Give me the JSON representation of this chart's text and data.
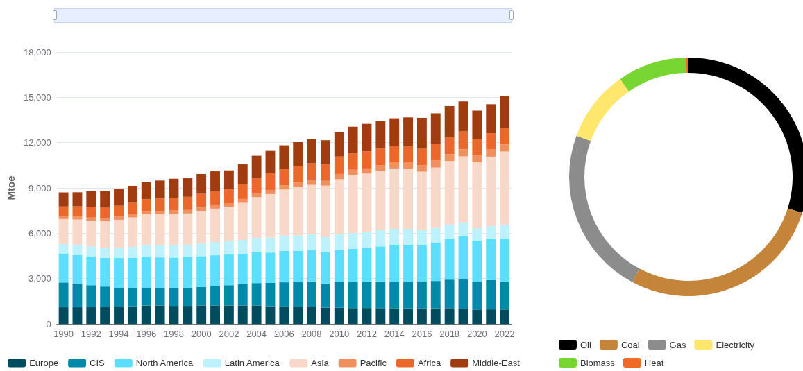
{
  "chart_data": [
    {
      "type": "bar",
      "stacked": true,
      "ylabel": "Mtoe",
      "categories": [
        "1990",
        null,
        "1992",
        null,
        "1994",
        null,
        "1996",
        null,
        "1998",
        null,
        "2000",
        null,
        "2002",
        null,
        "2004",
        null,
        "2006",
        null,
        "2008",
        null,
        "2010",
        null,
        "2012",
        null,
        "2014",
        null,
        "2016",
        null,
        "2018",
        null,
        "2020",
        null,
        "2022"
      ],
      "ylim": [
        0,
        18000
      ],
      "yticks": [
        {
          "value": 0,
          "label": "0"
        },
        {
          "value": 3000,
          "label": "3,000"
        },
        {
          "value": 6000,
          "label": "6,000"
        },
        {
          "value": 9000,
          "label": "9,000"
        },
        {
          "value": 12000,
          "label": "12,000"
        },
        {
          "value": 15000,
          "label": "15,000"
        },
        {
          "value": 18000,
          "label": "18,000"
        }
      ],
      "grid": "y",
      "legend": "bottom",
      "series": [
        {
          "name": "Europe",
          "color": "#004c5f",
          "values": [
            1100,
            1100,
            1100,
            1110,
            1130,
            1170,
            1220,
            1220,
            1190,
            1190,
            1220,
            1220,
            1220,
            1220,
            1220,
            1170,
            1150,
            1130,
            1130,
            1080,
            1080,
            1050,
            1050,
            1040,
            1020,
            1020,
            1020,
            1020,
            1040,
            990,
            950,
            960,
            950
          ]
        },
        {
          "name": "CIS",
          "color": "#0089a8",
          "values": [
            1640,
            1550,
            1460,
            1360,
            1250,
            1190,
            1190,
            1140,
            1160,
            1200,
            1220,
            1260,
            1340,
            1420,
            1480,
            1540,
            1600,
            1630,
            1680,
            1590,
            1710,
            1740,
            1760,
            1770,
            1740,
            1740,
            1770,
            1820,
            1890,
            1970,
            1850,
            1940,
            1860
          ]
        },
        {
          "name": "North America",
          "color": "#5cdeff",
          "values": [
            1920,
            1920,
            1920,
            1900,
            1980,
            2010,
            2030,
            2040,
            2040,
            2030,
            2040,
            2060,
            2030,
            2010,
            2030,
            2010,
            2080,
            2080,
            2090,
            2080,
            2110,
            2180,
            2240,
            2320,
            2490,
            2490,
            2400,
            2530,
            2720,
            2840,
            2670,
            2730,
            2860
          ]
        },
        {
          "name": "Latin America",
          "color": "#bdf2fd",
          "values": [
            620,
            650,
            650,
            670,
            700,
            730,
            780,
            810,
            820,
            820,
            840,
            880,
            880,
            910,
            960,
            990,
            1010,
            1020,
            1020,
            990,
            1020,
            1040,
            1040,
            1070,
            1040,
            1040,
            1010,
            980,
            930,
            920,
            860,
            840,
            900
          ]
        },
        {
          "name": "Asia",
          "color": "#f8d8c8",
          "values": [
            1660,
            1690,
            1710,
            1750,
            1830,
            1950,
            2030,
            2040,
            2060,
            2070,
            2160,
            2210,
            2280,
            2450,
            2700,
            2880,
            3050,
            3180,
            3280,
            3410,
            3660,
            3850,
            3860,
            3940,
            4000,
            3970,
            3880,
            4000,
            4200,
            4370,
            4370,
            4600,
            4840
          ]
        },
        {
          "name": "Pacific",
          "color": "#f0905f",
          "values": [
            180,
            180,
            200,
            200,
            200,
            210,
            210,
            210,
            230,
            230,
            260,
            270,
            240,
            260,
            270,
            270,
            290,
            320,
            320,
            320,
            340,
            340,
            340,
            350,
            380,
            410,
            430,
            460,
            460,
            470,
            490,
            470,
            470
          ]
        },
        {
          "name": "Africa",
          "color": "#ec672a",
          "values": [
            650,
            690,
            720,
            730,
            730,
            750,
            790,
            840,
            850,
            870,
            870,
            870,
            910,
            970,
            1010,
            1100,
            1080,
            1110,
            1110,
            1130,
            1160,
            1080,
            1130,
            1110,
            1110,
            1110,
            1080,
            1100,
            1130,
            1180,
            1070,
            1080,
            1100
          ]
        },
        {
          "name": "Middle-East",
          "color": "#a03c10",
          "values": [
            930,
            930,
            1010,
            1080,
            1130,
            1130,
            1130,
            1190,
            1260,
            1230,
            1310,
            1330,
            1260,
            1340,
            1460,
            1490,
            1560,
            1560,
            1630,
            1560,
            1630,
            1770,
            1820,
            1820,
            1830,
            1890,
            2050,
            2030,
            2050,
            1990,
            1860,
            1920,
            2110
          ]
        }
      ]
    },
    {
      "type": "donut",
      "categories": [
        "Oil",
        "Coal",
        "Gas",
        "Electricity",
        "Biomass",
        "Heat"
      ],
      "values": [
        29.9,
        27.9,
        22.8,
        9.7,
        9.4,
        0.3
      ],
      "colors": [
        "#000000",
        "#c4843a",
        "#8c8c8c",
        "#ffe66d",
        "#78d632",
        "#ef6b25"
      ],
      "legend": "bottom"
    }
  ]
}
